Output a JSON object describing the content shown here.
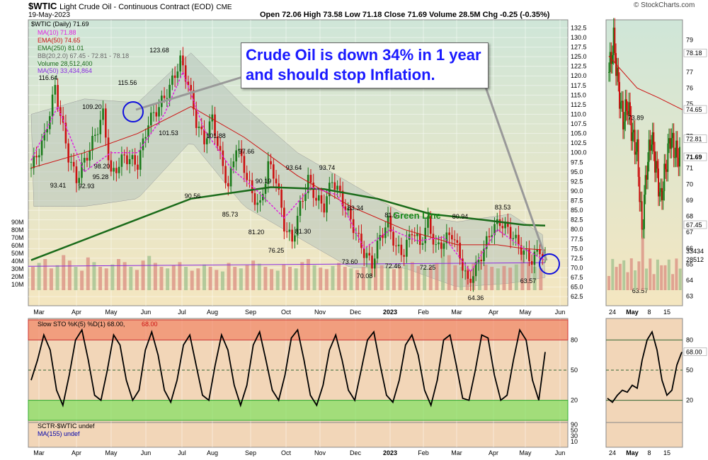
{
  "header": {
    "symbol": "$WTIC",
    "name": "Light Crude Oil - Continuous Contract (EOD)",
    "exchange": "CME",
    "date": "19-May-2023",
    "quote": "Open 72.06   High 73.58   Low 71.18   Close 71.69   Volume 28.5M   Chg -0.25 (-0.35%)",
    "copyright": "© StockCharts.com"
  },
  "callout": {
    "line1": "Crude Oil is down 34% in 1 year",
    "line2": "and should stop Inflation."
  },
  "annotation": {
    "green_line": "Green Line"
  },
  "legend": {
    "main": "$WTIC (Daily) 71.69",
    "ma10": "MA(10) 71.88",
    "ema50": "EMA(50) 74.65",
    "ema250": "EMA(250) 81.01",
    "bb": "BB(20,2.0) 67.45 - 72.81 - 78.18",
    "volume": "Volume 28,512,400",
    "vol_ma": "MA(50) 33,434,864"
  },
  "sto_legend": {
    "title": "Slow STO %K(5) %D(1) 68.00,",
    "value": "68.00"
  },
  "sctr_legend": {
    "title": "SCTR-$WTIC undef",
    "ma": "MA(155) undef"
  },
  "colors": {
    "up": "#1a7a1a",
    "down": "#cc1111",
    "ma10": "#e020e0",
    "ema50": "#cc1111",
    "ema250": "#1a6b1a",
    "bb_fill": "#b8c4bc",
    "vol_ma": "#8a2be2",
    "sto_over": "#f0908080",
    "sto_under": "#80e080",
    "callout_text": "#1a1aff"
  },
  "chart_data": {
    "type": "line",
    "y_ticks_main": [
      "132.5",
      "130.0",
      "127.5",
      "125.0",
      "122.5",
      "120.0",
      "117.5",
      "115.0",
      "112.5",
      "110.0",
      "107.5",
      "105.0",
      "102.5",
      "100.0",
      "97.5",
      "95.0",
      "92.5",
      "90.0",
      "87.5",
      "85.0",
      "82.5",
      "80.0",
      "77.5",
      "75.0",
      "72.5",
      "70.0",
      "67.5",
      "65.0",
      "62.5"
    ],
    "y_range_main": [
      60.5,
      133.5
    ],
    "volume_ticks": [
      "90M",
      "80M",
      "70M",
      "60M",
      "50M",
      "40M",
      "30M",
      "20M",
      "10M"
    ],
    "x_ticks": [
      "Mar",
      "Apr",
      "May",
      "Jun",
      "Jul",
      "Aug",
      "Sep",
      "Oct",
      "Nov",
      "Dec",
      "2023",
      "Feb",
      "Mar",
      "Apr",
      "May",
      "Jun"
    ],
    "price_labels": [
      {
        "v": "116.64"
      },
      {
        "v": "93.41"
      },
      {
        "v": "92.93"
      },
      {
        "v": "109.20"
      },
      {
        "v": "95.28"
      },
      {
        "v": "98.20"
      },
      {
        "v": "115.56"
      },
      {
        "v": "123.68"
      },
      {
        "v": "101.53"
      },
      {
        "v": "101.88"
      },
      {
        "v": "90.56"
      },
      {
        "v": "97.66"
      },
      {
        "v": "85.73"
      },
      {
        "v": "90.19"
      },
      {
        "v": "81.20"
      },
      {
        "v": "76.25"
      },
      {
        "v": "93.64"
      },
      {
        "v": "81.30"
      },
      {
        "v": "93.74"
      },
      {
        "v": "83.34"
      },
      {
        "v": "73.60"
      },
      {
        "v": "70.08"
      },
      {
        "v": "81.5"
      },
      {
        "v": "72.46"
      },
      {
        "v": "80.94"
      },
      {
        "v": "72.25"
      },
      {
        "v": "64.36"
      },
      {
        "v": "83.53"
      },
      {
        "v": "63.57"
      }
    ],
    "close_path": [
      [
        0,
        96
      ],
      [
        5,
        104
      ],
      [
        9,
        117
      ],
      [
        14,
        99
      ],
      [
        17,
        93
      ],
      [
        22,
        101
      ],
      [
        27,
        110
      ],
      [
        30,
        94
      ],
      [
        35,
        99
      ],
      [
        40,
        97
      ],
      [
        44,
        108
      ],
      [
        48,
        112
      ],
      [
        52,
        117
      ],
      [
        56,
        124
      ],
      [
        59,
        118
      ],
      [
        62,
        108
      ],
      [
        65,
        103
      ],
      [
        68,
        109
      ],
      [
        71,
        99
      ],
      [
        74,
        91
      ],
      [
        77,
        102
      ],
      [
        80,
        96
      ],
      [
        83,
        89
      ],
      [
        86,
        86
      ],
      [
        89,
        97
      ],
      [
        92,
        93
      ],
      [
        95,
        81
      ],
      [
        98,
        77
      ],
      [
        101,
        86
      ],
      [
        104,
        93
      ],
      [
        107,
        88
      ],
      [
        110,
        86
      ],
      [
        113,
        93
      ],
      [
        116,
        89
      ],
      [
        119,
        84
      ],
      [
        122,
        79
      ],
      [
        125,
        74
      ],
      [
        128,
        71
      ],
      [
        131,
        78
      ],
      [
        134,
        82
      ],
      [
        137,
        75
      ],
      [
        140,
        74
      ],
      [
        143,
        80
      ],
      [
        146,
        76
      ],
      [
        149,
        82
      ],
      [
        152,
        75
      ],
      [
        155,
        77
      ],
      [
        158,
        79
      ],
      [
        161,
        73
      ],
      [
        164,
        66
      ],
      [
        167,
        70
      ],
      [
        170,
        75
      ],
      [
        173,
        80
      ],
      [
        176,
        82
      ],
      [
        179,
        80
      ],
      [
        182,
        77
      ],
      [
        185,
        74
      ],
      [
        188,
        72
      ],
      [
        191,
        75
      ],
      [
        193,
        71.69
      ]
    ],
    "bb_upper": [
      [
        0,
        110
      ],
      [
        20,
        114
      ],
      [
        40,
        113
      ],
      [
        60,
        126
      ],
      [
        80,
        112
      ],
      [
        100,
        100
      ],
      [
        120,
        92
      ],
      [
        140,
        84
      ],
      [
        160,
        82
      ],
      [
        180,
        84
      ],
      [
        193,
        78.2
      ]
    ],
    "bb_lower": [
      [
        0,
        86
      ],
      [
        20,
        86
      ],
      [
        40,
        88
      ],
      [
        60,
        103
      ],
      [
        80,
        86
      ],
      [
        100,
        78
      ],
      [
        120,
        70
      ],
      [
        140,
        70
      ],
      [
        160,
        65
      ],
      [
        180,
        66
      ],
      [
        193,
        67.5
      ]
    ],
    "ma10": [
      [
        0,
        98
      ],
      [
        10,
        112
      ],
      [
        20,
        95
      ],
      [
        30,
        100
      ],
      [
        40,
        100
      ],
      [
        50,
        110
      ],
      [
        57,
        121
      ],
      [
        65,
        106
      ],
      [
        75,
        96
      ],
      [
        85,
        90
      ],
      [
        95,
        83
      ],
      [
        105,
        91
      ],
      [
        115,
        89
      ],
      [
        125,
        75
      ],
      [
        135,
        80
      ],
      [
        145,
        77
      ],
      [
        155,
        78
      ],
      [
        165,
        69
      ],
      [
        175,
        80
      ],
      [
        185,
        75
      ],
      [
        193,
        71.9
      ]
    ],
    "ema50": [
      [
        0,
        96
      ],
      [
        20,
        100
      ],
      [
        40,
        105
      ],
      [
        60,
        112
      ],
      [
        80,
        104
      ],
      [
        100,
        94
      ],
      [
        120,
        86
      ],
      [
        140,
        80
      ],
      [
        160,
        76
      ],
      [
        175,
        76
      ],
      [
        185,
        75
      ],
      [
        193,
        74.65
      ]
    ],
    "ema250": [
      [
        0,
        72
      ],
      [
        30,
        80
      ],
      [
        60,
        88
      ],
      [
        90,
        91
      ],
      [
        110,
        90.5
      ],
      [
        130,
        88
      ],
      [
        150,
        84
      ],
      [
        170,
        82.5
      ],
      [
        185,
        81.2
      ],
      [
        193,
        81.0
      ]
    ],
    "volume": [
      30,
      35,
      40,
      28,
      32,
      45,
      38,
      30,
      25,
      42,
      36,
      30,
      28,
      33,
      40,
      36,
      30,
      26,
      38,
      44,
      35,
      30,
      28,
      32,
      36,
      30,
      25,
      28,
      33,
      30,
      26,
      24,
      35,
      30,
      28,
      32,
      38,
      34,
      30,
      27,
      25,
      33,
      30,
      28,
      36,
      40,
      32,
      29,
      27,
      31,
      35,
      30,
      28,
      26,
      30,
      34,
      38,
      32,
      29,
      27,
      30,
      33,
      36,
      31,
      28,
      30,
      35,
      60,
      45,
      32,
      30,
      28,
      34,
      37,
      33,
      30,
      28,
      31,
      29,
      33,
      50,
      36,
      30,
      28
    ],
    "vol_ma": 33.4,
    "sto": [
      40,
      60,
      85,
      70,
      30,
      15,
      45,
      80,
      90,
      60,
      25,
      20,
      50,
      85,
      75,
      40,
      20,
      30,
      70,
      88,
      65,
      30,
      18,
      40,
      75,
      85,
      55,
      25,
      20,
      55,
      85,
      70,
      35,
      15,
      35,
      75,
      88,
      60,
      30,
      20,
      45,
      82,
      90,
      60,
      25,
      15,
      35,
      70,
      85,
      60,
      30,
      20,
      50,
      80,
      88,
      55,
      25,
      18,
      40,
      75,
      85,
      65,
      30,
      15,
      40,
      80,
      85,
      55,
      22,
      20,
      50,
      85,
      82,
      45,
      20,
      25,
      60,
      90,
      80,
      40,
      20,
      68
    ]
  },
  "sto_ticks": [
    "80",
    "50",
    "20"
  ],
  "sctr_ticks": [
    "90",
    "50",
    "30",
    "10"
  ],
  "side_ticks_main": [
    "79",
    "78.18",
    "77",
    "76",
    "75",
    "74.65",
    "73",
    "72.81",
    "71.69",
    "71",
    "70",
    "69",
    "68",
    "67.45",
    "67",
    "66",
    "65",
    "64",
    "63"
  ],
  "side_labels": {
    "l1": "73.89",
    "l2": "63.57"
  },
  "side_vol": [
    "33434",
    "28512"
  ],
  "side_x": [
    "24",
    "May",
    "8",
    "15"
  ],
  "side_sto_ticks": [
    "80",
    "68.00",
    "50",
    "20"
  ]
}
